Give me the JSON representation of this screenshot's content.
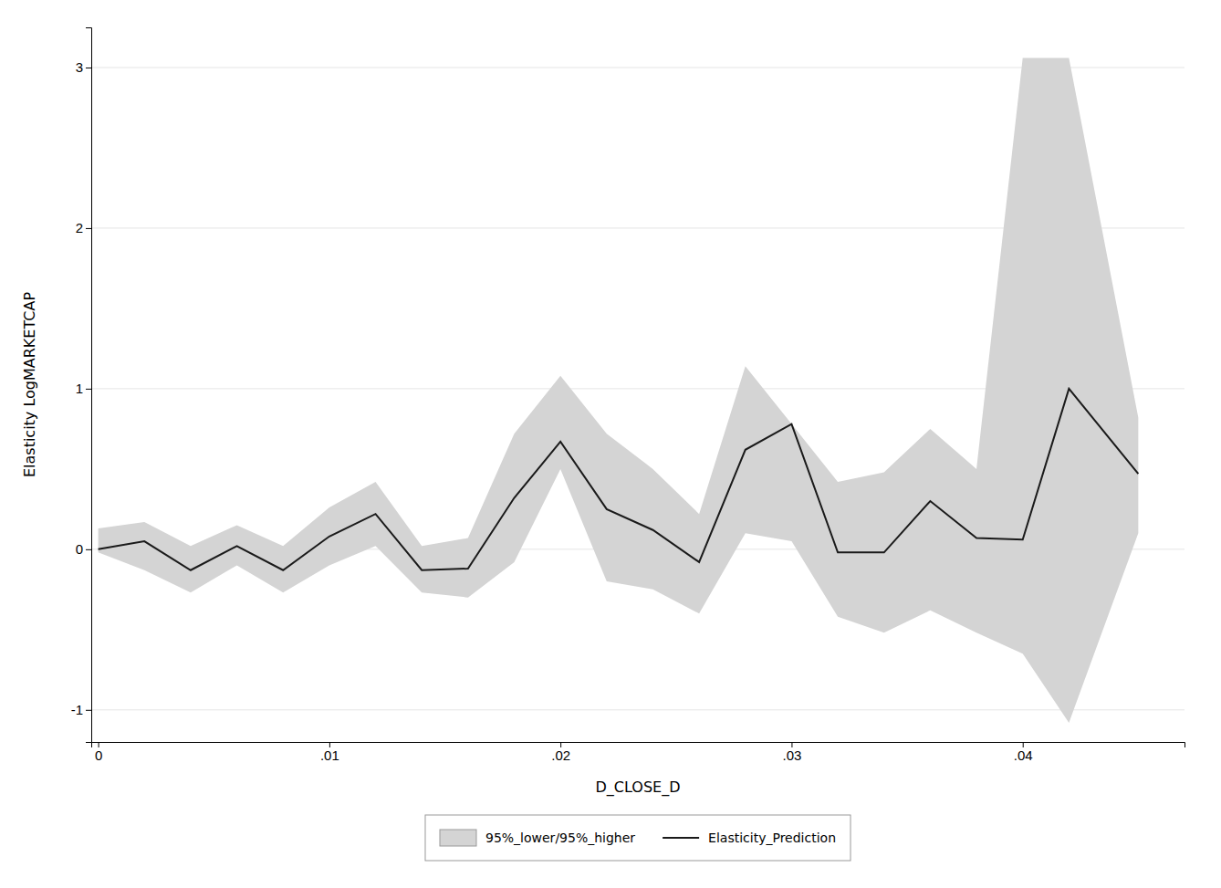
{
  "chart_data": {
    "type": "line",
    "xlabel": "D_CLOSE_D",
    "ylabel": "Elasticity LogMARKETCAP",
    "x": [
      0.0,
      0.002,
      0.004,
      0.006,
      0.008,
      0.01,
      0.012,
      0.014,
      0.016,
      0.018,
      0.02,
      0.022,
      0.024,
      0.026,
      0.028,
      0.03,
      0.032,
      0.034,
      0.036,
      0.038,
      0.04,
      0.042,
      0.045
    ],
    "xlim": [
      -0.0003,
      0.047
    ],
    "ylim": [
      -1.2,
      3.25
    ],
    "xticks": [
      0,
      {
        "value": 0.01,
        "label": ".01"
      },
      {
        "value": 0.02,
        "label": ".02"
      },
      {
        "value": 0.03,
        "label": ".03"
      },
      {
        "value": 0.04,
        "label": ".04"
      }
    ],
    "yticks": [
      -1,
      0,
      1,
      2,
      3
    ],
    "grid": "y",
    "legend": "bottom",
    "series": [
      {
        "name": "95%_lower/95%_higher",
        "type": "area",
        "color": "#d4d4d4",
        "lower": [
          -0.02,
          -0.13,
          -0.27,
          -0.1,
          -0.27,
          -0.1,
          0.02,
          -0.27,
          -0.3,
          -0.08,
          0.5,
          -0.2,
          -0.25,
          -0.4,
          0.1,
          0.05,
          -0.42,
          -0.52,
          -0.38,
          -0.52,
          -0.65,
          -1.08,
          0.1
        ],
        "upper": [
          0.13,
          0.17,
          0.02,
          0.15,
          0.02,
          0.26,
          0.42,
          0.02,
          0.07,
          0.72,
          1.08,
          0.72,
          0.5,
          0.22,
          1.14,
          0.78,
          0.42,
          0.48,
          0.75,
          0.5,
          3.06,
          3.06,
          0.82
        ]
      },
      {
        "name": "Elasticity_Prediction",
        "type": "line",
        "color": "#1a1a1a",
        "values": [
          0.0,
          0.05,
          -0.13,
          0.02,
          -0.13,
          0.08,
          0.22,
          -0.13,
          -0.12,
          0.32,
          0.67,
          0.25,
          0.12,
          -0.08,
          0.62,
          0.78,
          -0.02,
          -0.02,
          0.3,
          0.07,
          0.06,
          1.0,
          0.47
        ]
      }
    ]
  }
}
